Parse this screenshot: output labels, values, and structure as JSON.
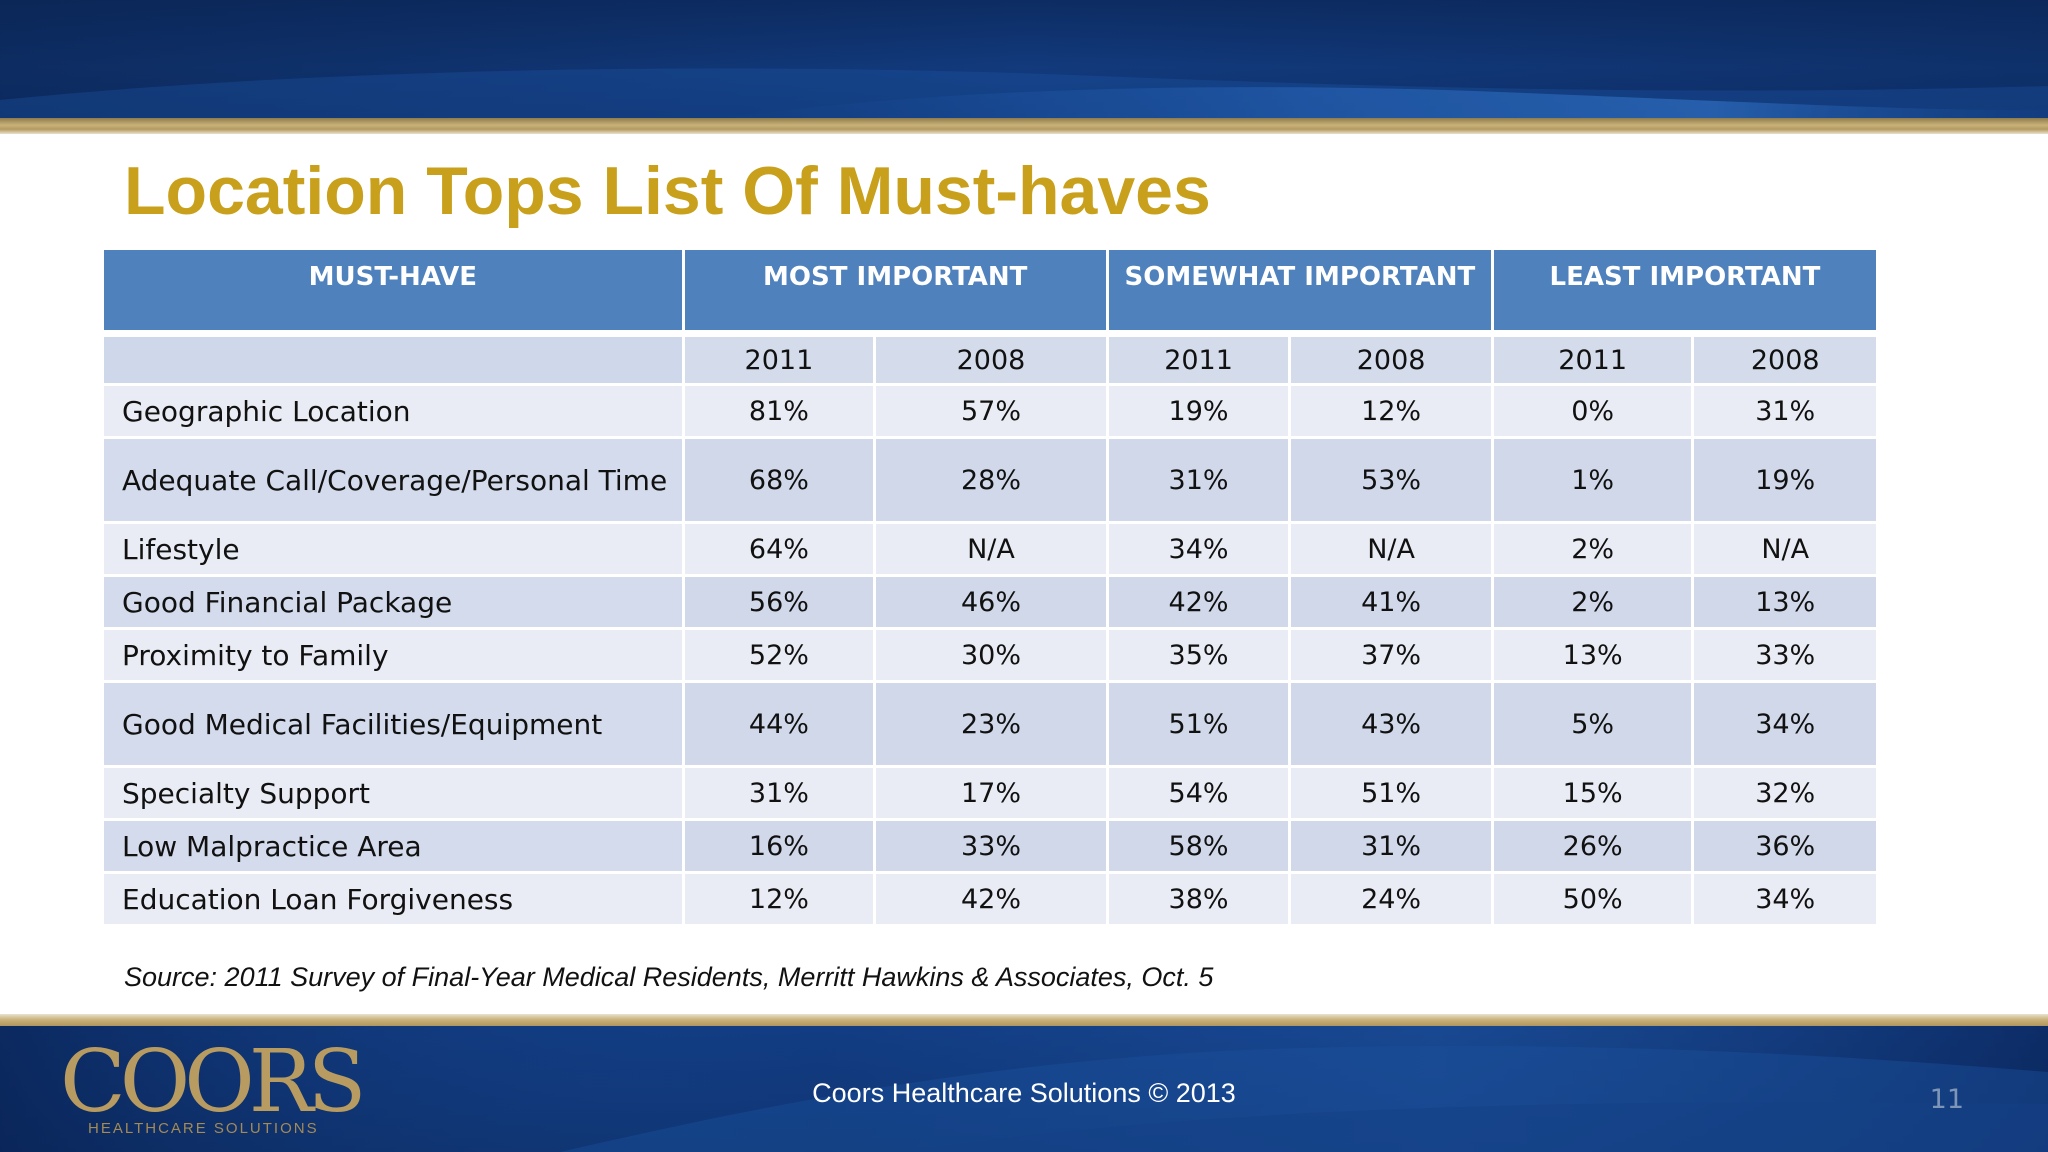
{
  "slide": {
    "title": "Location Tops List Of Must-haves",
    "source": "Source: 2011 Survey of Final-Year Medical Residents, Merritt Hawkins & Associates, Oct. 5",
    "footer": "Coors Healthcare Solutions © 2013",
    "page_number": "11",
    "logo": {
      "name": "COORS",
      "subtitle": "HEALTHCARE SOLUTIONS"
    }
  },
  "table": {
    "headers": [
      "MUST-HAVE",
      "MOST IMPORTANT",
      "SOMEWHAT IMPORTANT",
      "LEAST IMPORTANT"
    ],
    "years": [
      "2011",
      "2008",
      "2011",
      "2008",
      "2011",
      "2008"
    ],
    "rows": [
      {
        "label": "Geographic Location",
        "values": [
          "81%",
          "57%",
          "19%",
          "12%",
          "0%",
          "31%"
        ]
      },
      {
        "label": "Adequate Call/Coverage/Personal Time",
        "values": [
          "68%",
          "28%",
          "31%",
          "53%",
          "1%",
          "19%"
        ]
      },
      {
        "label": "Lifestyle",
        "values": [
          "64%",
          "N/A",
          "34%",
          "N/A",
          "2%",
          "N/A"
        ]
      },
      {
        "label": "Good Financial Package",
        "values": [
          "56%",
          "46%",
          "42%",
          "41%",
          "2%",
          "13%"
        ]
      },
      {
        "label": "Proximity to Family",
        "values": [
          "52%",
          "30%",
          "35%",
          "37%",
          "13%",
          "33%"
        ]
      },
      {
        "label": "Good Medical Facilities/Equipment",
        "values": [
          "44%",
          "23%",
          "51%",
          "43%",
          "5%",
          "34%"
        ]
      },
      {
        "label": "Specialty Support",
        "values": [
          "31%",
          "17%",
          "54%",
          "51%",
          "15%",
          "32%"
        ]
      },
      {
        "label": "Low Malpractice Area",
        "values": [
          "16%",
          "33%",
          "58%",
          "31%",
          "26%",
          "36%"
        ]
      },
      {
        "label": "Education Loan Forgiveness",
        "values": [
          "12%",
          "42%",
          "38%",
          "24%",
          "50%",
          "34%"
        ]
      }
    ]
  },
  "colors": {
    "title": "#c8a01c",
    "header_bg": "#4f81bd",
    "row_light": "#e9ecf4",
    "row_dark": "#d0d8ea",
    "banner": "#123a7c",
    "gold_band": "#c9b27a"
  }
}
